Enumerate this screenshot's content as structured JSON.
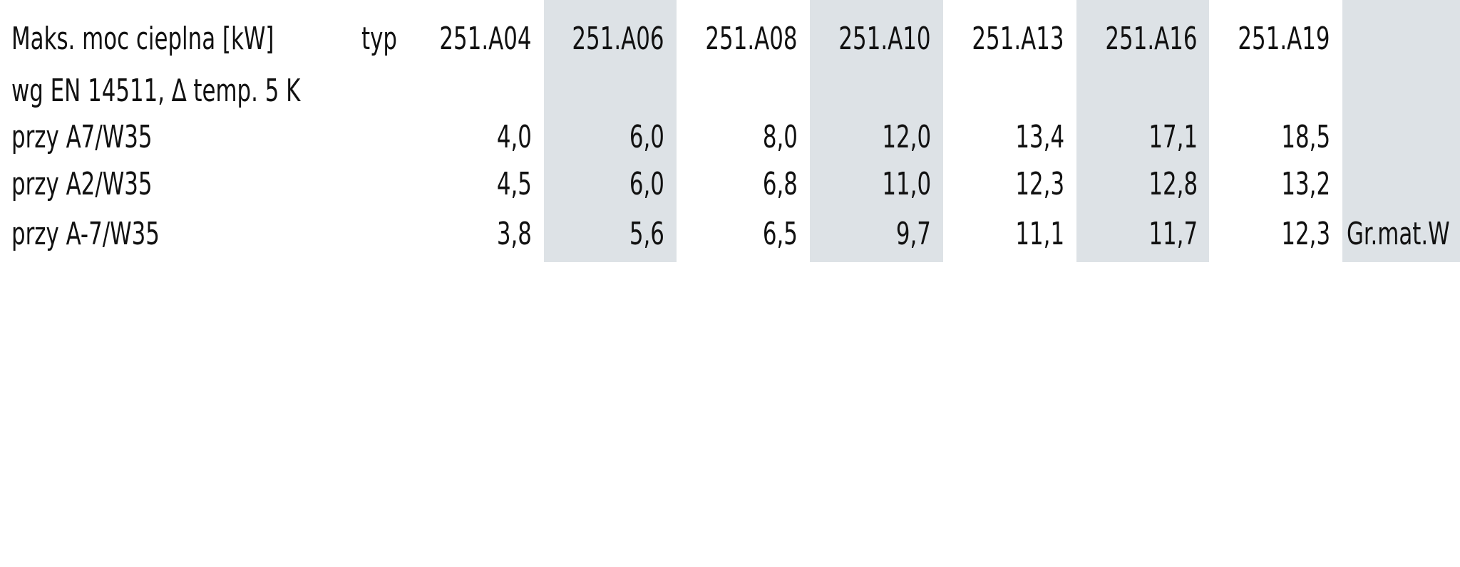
{
  "table": {
    "header": {
      "label": "Maks. moc cieplna [kW]",
      "type_label": "typ",
      "models": [
        "251.A04",
        "251.A06",
        "251.A08",
        "251.A10",
        "251.A13",
        "251.A16",
        "251.A19"
      ]
    },
    "subheader": "wg EN 14511, ∆ temp. 5 K",
    "rows": [
      {
        "label": "przy A7/W35",
        "values": [
          "4,0",
          "6,0",
          "8,0",
          "12,0",
          "13,4",
          "17,1",
          "18,5"
        ]
      },
      {
        "label": "przy A2/W35",
        "values": [
          "4,5",
          "6,0",
          "6,8",
          "11,0",
          "12,3",
          "12,8",
          "13,2"
        ]
      },
      {
        "label": "przy A-7/W35",
        "values": [
          "3,8",
          "5,6",
          "6,5",
          "9,7",
          "11,1",
          "11,7",
          "12,3"
        ]
      }
    ],
    "note": "Gr.mat.W"
  }
}
